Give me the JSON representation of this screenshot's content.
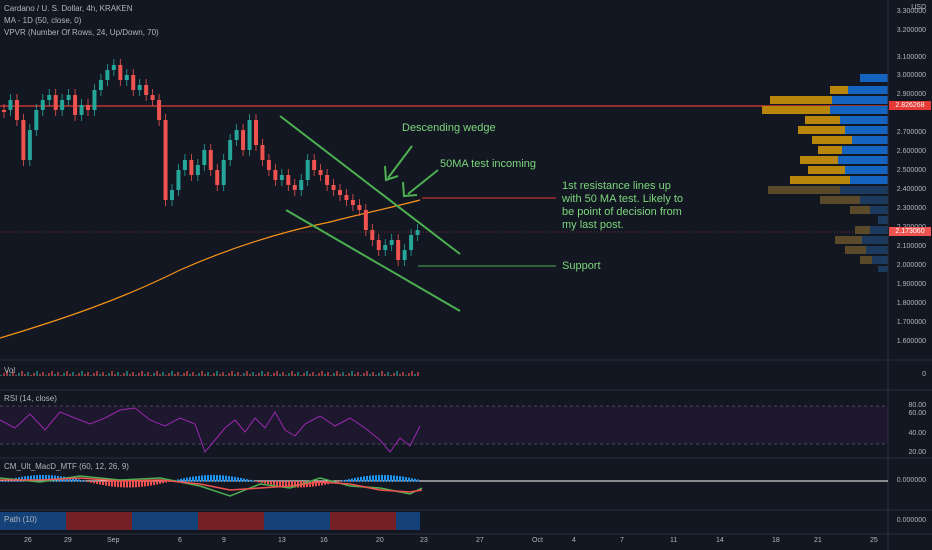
{
  "header": {
    "symbol": "Cardano / U. S. Dollar, 4h, KRAKEN",
    "ma_indicator": "MA - 1D (50, close, 0)",
    "vpvr_indicator": "VPVR (Number Of Rows, 24, Up/Down, 70)",
    "currency": "USD"
  },
  "price_axis": {
    "labels": [
      "3.300000",
      "3.200000",
      "3.100000",
      "3.000000",
      "2.900000",
      "2.700000",
      "2.600000",
      "2.500000",
      "2.400000",
      "2.300000",
      "2.200000",
      "2.100000",
      "2.000000",
      "1.900000",
      "1.800000",
      "1.700000",
      "1.600000"
    ],
    "tag_upper": "2.826268",
    "tag_current": "2.173060",
    "vol_zero": "0"
  },
  "annotations": {
    "wedge": "Descending wedge",
    "ma_test": "50MA test incoming",
    "resistance_line1": "1st resistance lines up",
    "resistance_line2": "with 50 MA test. Likely to",
    "resistance_line3": "be point of decision from",
    "resistance_line4": "my last post.",
    "support": "Support"
  },
  "panes": {
    "vol": "Vol",
    "rsi": "RSI (14, close)",
    "rsi_levels": [
      "80.00",
      "60.00",
      "40.00",
      "20.00"
    ],
    "macd": "CM_Ult_MacD_MTF (60, 12, 26, 9)",
    "macd_zero": "0.000000",
    "bottom": "Path (10)",
    "bottom_zero": "0.000000"
  },
  "time_axis": [
    "26",
    "29",
    "Sep",
    "6",
    "9",
    "13",
    "16",
    "20",
    "23",
    "27",
    "Oct",
    "4",
    "7",
    "11",
    "14",
    "18",
    "21",
    "25"
  ],
  "colors": {
    "background": "#131722",
    "up": "#26a69a",
    "down": "#ef5350",
    "ma": "#f7931a",
    "annotation": "#7cd67c",
    "resistance": "#e53935",
    "rsi": "#9c27b0"
  }
}
